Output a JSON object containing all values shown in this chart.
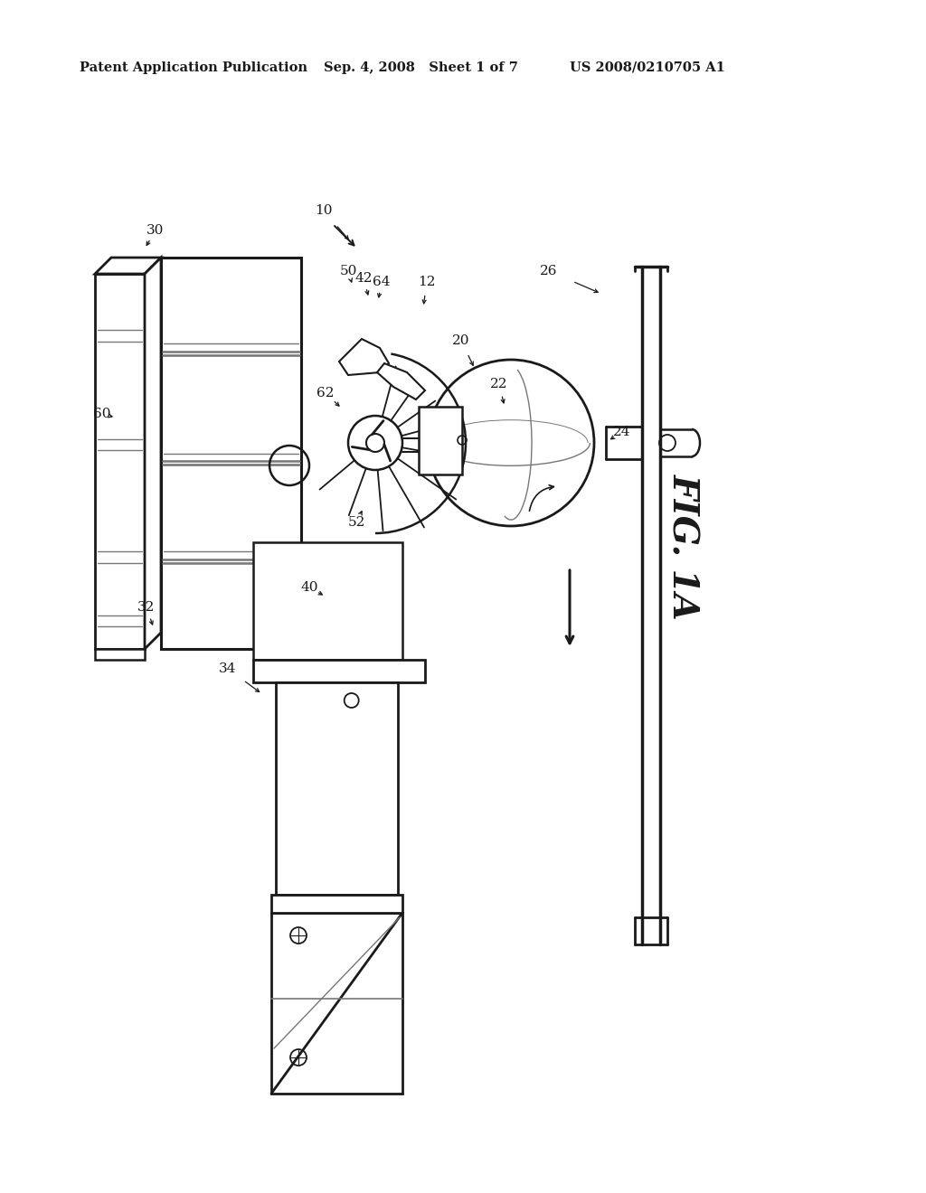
{
  "bg_color": "#ffffff",
  "line_color": "#1a1a1a",
  "gray_color": "#777777",
  "header_left": "Patent Application Publication",
  "header_mid": "Sep. 4, 2008   Sheet 1 of 7",
  "header_right": "US 2008/0210705 A1",
  "fig_label": "FIG. 1A"
}
